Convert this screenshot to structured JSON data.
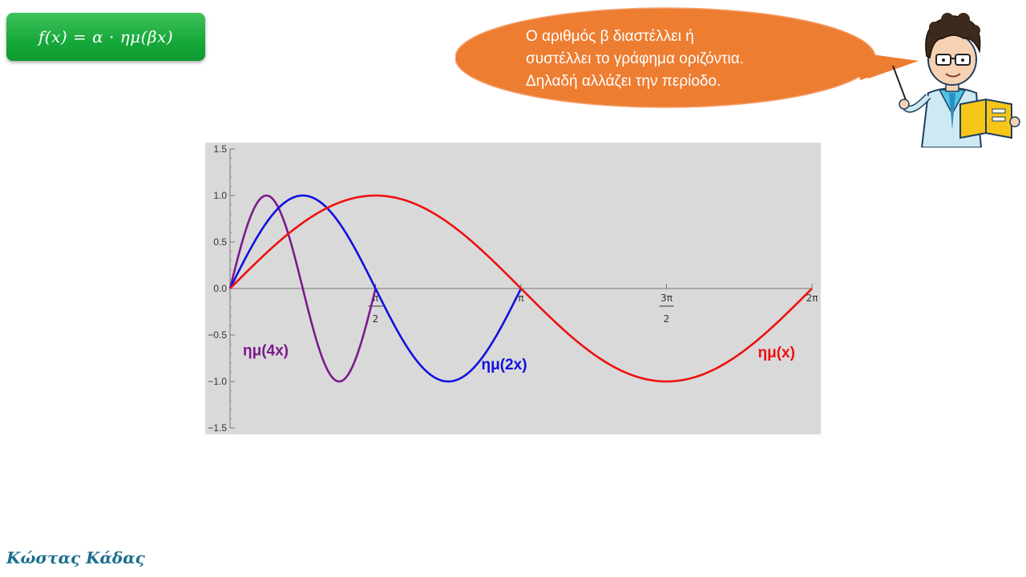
{
  "formula": "f(x) = α · ημ(βx)",
  "bubble": {
    "lines": [
      "Ο αριθμός β διαστέλλει ή",
      "συστέλλει το γράφημα οριζόντια.",
      "Δηλαδή αλλάζει την περίοδο."
    ],
    "color": "#ed7d31"
  },
  "author": "Κώστας Κάδας",
  "chart_data": {
    "type": "line",
    "xlim": [
      0,
      6.2832
    ],
    "ylim": [
      -1.5,
      1.5
    ],
    "y_ticks": [
      "1.5",
      "1.0",
      "0.5",
      "0.0",
      "−0.5",
      "−1.0",
      "−1.5"
    ],
    "y_tick_values": [
      1.5,
      1.0,
      0.5,
      0.0,
      -0.5,
      -1.0,
      -1.5
    ],
    "x_ticks": [
      {
        "value": 1.5708,
        "num": "π",
        "den": "2"
      },
      {
        "value": 3.1416,
        "label": "π"
      },
      {
        "value": 4.7124,
        "num": "3π",
        "den": "2"
      },
      {
        "value": 6.2832,
        "label": "2π"
      }
    ],
    "background": "#d9d9d9",
    "grid": false,
    "series": [
      {
        "name": "ημ(4x)",
        "func": "sin",
        "beta": 4,
        "x_range": [
          0,
          1.5708
        ],
        "color": "#7b1a8c",
        "label_at": [
          0.385,
          -0.72
        ]
      },
      {
        "name": "ημ(2x)",
        "func": "sin",
        "beta": 2,
        "x_range": [
          0,
          3.1416
        ],
        "color": "#1010e0",
        "label_at": [
          2.96,
          -0.87
        ]
      },
      {
        "name": "ημ(x)",
        "func": "sin",
        "beta": 1,
        "x_range": [
          0,
          6.2832
        ],
        "color": "#ee1010",
        "label_at": [
          5.9,
          -0.74
        ]
      }
    ]
  }
}
